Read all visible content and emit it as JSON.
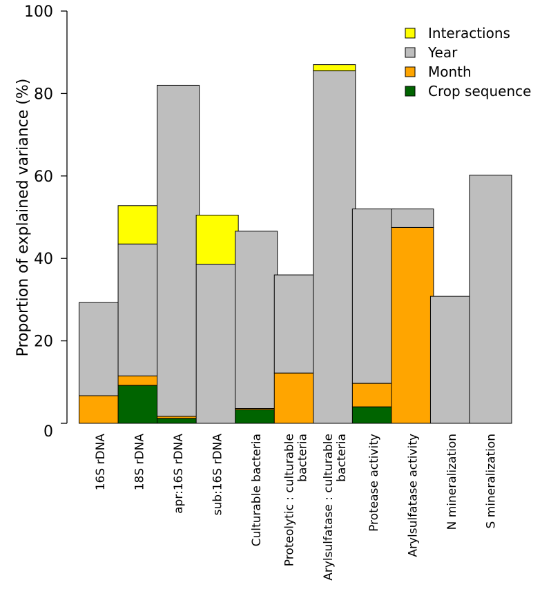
{
  "chart_data": {
    "type": "bar",
    "stacked": true,
    "title": "",
    "xlabel": "",
    "ylabel": "Proportion of explained variance (%)",
    "ylim": [
      0,
      100
    ],
    "yticks": [
      "0",
      "20",
      "40",
      "60",
      "80",
      "100"
    ],
    "grid": false,
    "legend_position": "top-right",
    "categories": [
      [
        "16S rDNA"
      ],
      [
        "18S rDNA"
      ],
      [
        "apr:16S rDNA"
      ],
      [
        "sub:16S rDNA"
      ],
      [
        "Culturable bacteria"
      ],
      [
        "Proteolytic : culturable",
        "bacteria"
      ],
      [
        "Arylsulfatase : culturable",
        "bacteria"
      ],
      [
        "Protease activity"
      ],
      [
        "Arylsulfatase activity"
      ],
      [
        "N mineralization"
      ],
      [
        "S mineralization"
      ]
    ],
    "series": [
      {
        "name": "Crop sequence",
        "color": "#006400",
        "values": [
          0,
          9.2,
          1.2,
          0,
          3.3,
          0,
          0,
          4.0,
          0,
          0,
          0
        ]
      },
      {
        "name": "Month",
        "color": "#FFA500",
        "values": [
          6.7,
          2.3,
          0.5,
          0,
          0.3,
          12.2,
          0,
          5.7,
          47.5,
          0,
          0
        ]
      },
      {
        "name": "Year",
        "color": "#BEBEBE",
        "values": [
          22.6,
          32.0,
          80.3,
          38.6,
          43.0,
          23.8,
          85.5,
          42.3,
          4.5,
          30.8,
          60.2
        ]
      },
      {
        "name": "Interactions",
        "color": "#FFFF00",
        "values": [
          0,
          9.3,
          0,
          11.9,
          0,
          0,
          1.5,
          0,
          0,
          0,
          0
        ]
      }
    ],
    "legend_order": [
      "Interactions",
      "Year",
      "Month",
      "Crop sequence"
    ]
  }
}
